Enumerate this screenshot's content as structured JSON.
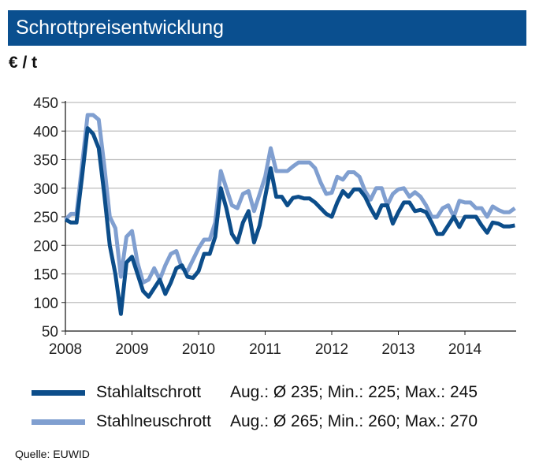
{
  "header": {
    "title": "Schrottpreisentwicklung",
    "unit": "€ / t"
  },
  "source": "Quelle: EUWID",
  "colors": {
    "header": "#0a4f8f",
    "dark": "#0c4d8a",
    "light": "#809fd0"
  },
  "chart_data": {
    "type": "line",
    "title": "Schrottpreisentwicklung",
    "ylabel": "€ / t",
    "ylim": [
      50,
      450
    ],
    "yticks": [
      "50",
      "100",
      "150",
      "200",
      "250",
      "300",
      "350",
      "400",
      "450"
    ],
    "xlim": [
      "2008-01",
      "2014-09"
    ],
    "xticks": [
      "2008",
      "2009",
      "2010",
      "2011",
      "2012",
      "2013",
      "2014"
    ],
    "x_start": "2008-01",
    "x_step": "month",
    "grid": true,
    "legend_position": "bottom",
    "series": [
      {
        "name": "Stahlaltschrott",
        "stats": "Aug.: Ø 235; Min.: 225; Max.: 245",
        "color": "#0c4d8a",
        "values": [
          245,
          240,
          240,
          320,
          405,
          395,
          370,
          290,
          200,
          150,
          80,
          170,
          180,
          150,
          120,
          110,
          125,
          140,
          115,
          135,
          160,
          165,
          145,
          143,
          155,
          185,
          185,
          215,
          300,
          265,
          220,
          205,
          240,
          260,
          205,
          235,
          285,
          335,
          285,
          285,
          270,
          283,
          285,
          282,
          282,
          275,
          265,
          255,
          250,
          275,
          295,
          285,
          298,
          298,
          285,
          265,
          248,
          270,
          270,
          238,
          258,
          275,
          275,
          260,
          262,
          258,
          240,
          220,
          220,
          235,
          250,
          232,
          250,
          250,
          250,
          235,
          222,
          240,
          238,
          233,
          233,
          235
        ]
      },
      {
        "name": "Stahlneuschrott",
        "stats": "Aug.: Ø 265; Min.: 260; Max.: 270",
        "color": "#809fd0",
        "values": [
          245,
          255,
          255,
          340,
          428,
          428,
          420,
          340,
          250,
          230,
          145,
          215,
          225,
          170,
          135,
          140,
          160,
          140,
          165,
          185,
          190,
          160,
          155,
          175,
          195,
          210,
          210,
          240,
          330,
          300,
          270,
          265,
          290,
          295,
          260,
          290,
          320,
          370,
          330,
          330,
          330,
          338,
          345,
          345,
          345,
          335,
          310,
          290,
          292,
          320,
          315,
          328,
          328,
          320,
          295,
          280,
          300,
          300,
          270,
          290,
          298,
          300,
          285,
          293,
          285,
          270,
          250,
          250,
          265,
          270,
          250,
          278,
          275,
          275,
          265,
          265,
          250,
          268,
          262,
          258,
          258,
          265
        ]
      }
    ]
  }
}
